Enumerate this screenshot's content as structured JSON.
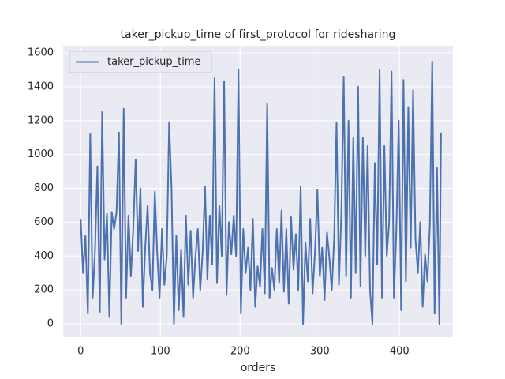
{
  "chart_data": {
    "type": "line",
    "title": "taker_pickup_time of first_protocol for ridesharing",
    "x_label": "orders",
    "x": [
      0,
      3,
      6,
      9,
      12,
      15,
      18,
      21,
      24,
      27,
      30,
      33,
      36,
      39,
      42,
      45,
      48,
      51,
      54,
      57,
      60,
      63,
      66,
      69,
      72,
      75,
      78,
      81,
      84,
      87,
      90,
      93,
      96,
      99,
      102,
      105,
      108,
      111,
      114,
      117,
      120,
      123,
      126,
      129,
      132,
      135,
      138,
      141,
      144,
      147,
      150,
      153,
      156,
      159,
      162,
      165,
      168,
      171,
      174,
      177,
      180,
      183,
      186,
      189,
      192,
      195,
      198,
      201,
      204,
      207,
      210,
      213,
      216,
      219,
      222,
      225,
      228,
      231,
      234,
      237,
      240,
      243,
      246,
      249,
      252,
      255,
      258,
      261,
      264,
      267,
      270,
      273,
      276,
      279,
      282,
      285,
      288,
      291,
      294,
      297,
      300,
      303,
      306,
      309,
      312,
      315,
      318,
      321,
      324,
      327,
      330,
      333,
      336,
      339,
      342,
      345,
      348,
      351,
      354,
      357,
      360,
      363,
      366,
      369,
      372,
      375,
      378,
      381,
      384,
      387,
      390,
      393,
      396,
      399,
      402,
      405,
      408,
      411,
      414,
      417,
      420,
      423,
      426,
      429,
      432,
      435,
      438,
      441,
      444,
      447,
      450,
      452
    ],
    "series": [
      {
        "name": "taker_pickup_time",
        "color": "#4c72b0",
        "values": [
          620,
          300,
          520,
          60,
          1120,
          150,
          430,
          930,
          70,
          1250,
          380,
          650,
          40,
          660,
          560,
          660,
          1130,
          0,
          1270,
          150,
          640,
          280,
          560,
          970,
          430,
          800,
          100,
          450,
          700,
          300,
          200,
          780,
          420,
          150,
          560,
          230,
          400,
          1190,
          800,
          0,
          520,
          80,
          440,
          40,
          640,
          230,
          550,
          150,
          400,
          560,
          200,
          420,
          810,
          260,
          640,
          350,
          1450,
          240,
          700,
          400,
          1430,
          170,
          600,
          410,
          640,
          400,
          1500,
          60,
          560,
          300,
          450,
          200,
          620,
          100,
          340,
          220,
          560,
          180,
          1300,
          150,
          330,
          200,
          560,
          240,
          670,
          190,
          560,
          120,
          630,
          320,
          530,
          200,
          810,
          0,
          480,
          250,
          620,
          180,
          430,
          790,
          280,
          450,
          140,
          540,
          390,
          200,
          500,
          1190,
          230,
          650,
          1460,
          280,
          1200,
          150,
          1100,
          300,
          1400,
          220,
          1100,
          400,
          1050,
          200,
          0,
          950,
          350,
          1500,
          150,
          1050,
          400,
          600,
          1490,
          150,
          550,
          1200,
          80,
          1440,
          250,
          1280,
          450,
          1380,
          500,
          300,
          600,
          100,
          410,
          250,
          580,
          1550,
          60,
          920,
          0,
          1130
        ]
      }
    ],
    "xlim": [
      -22,
      467
    ],
    "ylim": [
      -79,
      1642
    ],
    "xticks": [
      0,
      100,
      200,
      300,
      400
    ],
    "yticks": [
      0,
      200,
      400,
      600,
      800,
      1000,
      1200,
      1400,
      1600
    ],
    "grid": true,
    "legend": "upper left",
    "background": "#eaeaf2"
  }
}
